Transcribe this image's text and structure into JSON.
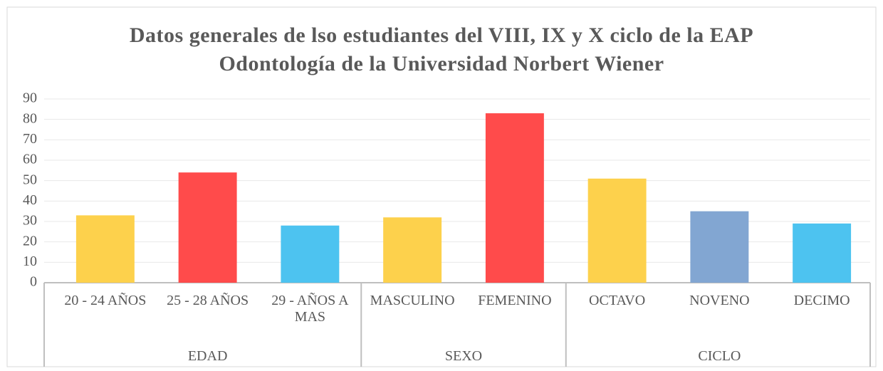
{
  "chart_data": {
    "type": "bar",
    "title": "Datos generales de lso estudiantes del VIII, IX y X ciclo de la EAP Odontología de la Universidad Norbert Wiener",
    "groups": [
      {
        "name": "EDAD",
        "categories": [
          "20 - 24 AÑOS",
          "25 - 28 AÑOS",
          "29 - AÑOS A MAS"
        ],
        "values": [
          33,
          54,
          28
        ],
        "colors": [
          "#fdd14c",
          "#ff4b4b",
          "#4dc3f0"
        ]
      },
      {
        "name": "SEXO",
        "categories": [
          "MASCULINO",
          "FEMENINO"
        ],
        "values": [
          32,
          83
        ],
        "colors": [
          "#fdd14c",
          "#ff4b4b"
        ]
      },
      {
        "name": "CICLO",
        "categories": [
          "OCTAVO",
          "NOVENO",
          "DECIMO"
        ],
        "values": [
          51,
          35,
          29
        ],
        "colors": [
          "#fdd14c",
          "#82a6d2",
          "#4dc3f0"
        ]
      }
    ],
    "ylim": [
      0,
      90
    ],
    "yticks": [
      0,
      10,
      20,
      30,
      40,
      50,
      60,
      70,
      80,
      90
    ],
    "grid": true
  }
}
